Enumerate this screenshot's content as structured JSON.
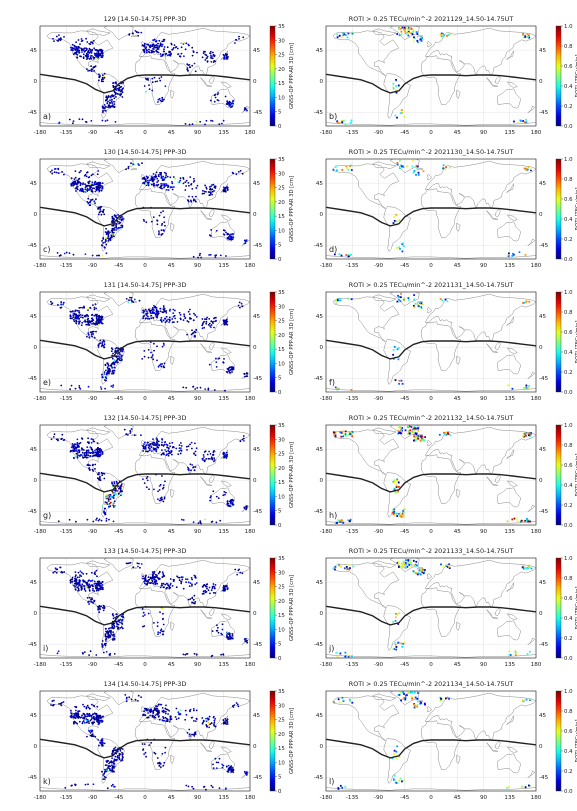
{
  "chart_data": [
    {
      "type": "scatter",
      "panel_label": "a)",
      "title": "129 [14.50-14.75] PPP-3D",
      "kind": "ppp",
      "colorbar_label": "GNSS-OP PPP-AR 3D [cm]"
    },
    {
      "type": "scatter",
      "panel_label": "b)",
      "title": "ROTI > 0.25 TECu/min^-2  2021129_14.50-14.75UT",
      "kind": "roti",
      "colorbar_label": "ROTI [TECu/min]"
    },
    {
      "type": "scatter",
      "panel_label": "c)",
      "title": "130 [14.50-14.75] PPP-3D",
      "kind": "ppp",
      "colorbar_label": "GNSS-OP PPP-AR 3D [cm]"
    },
    {
      "type": "scatter",
      "panel_label": "d)",
      "title": "ROTI > 0.25 TECu/min^-2  2021130_14.50-14.75UT",
      "kind": "roti",
      "colorbar_label": "ROTI [TECu/min]"
    },
    {
      "type": "scatter",
      "panel_label": "e)",
      "title": "131 [14.50-14.75] PPP-3D",
      "kind": "ppp",
      "colorbar_label": "GNSS-OP PPP-AR 3D [cm]"
    },
    {
      "type": "scatter",
      "panel_label": "f)",
      "title": "ROTI > 0.25 TECu/min^-2  2021131_14.50-14.75UT",
      "kind": "roti",
      "colorbar_label": "ROTI [TECu/min]"
    },
    {
      "type": "scatter",
      "panel_label": "g)",
      "title": "132 [14.50-14.75] PPP-3D",
      "kind": "ppp",
      "colorbar_label": "GNSS-OP PPP-AR 3D [cm]"
    },
    {
      "type": "scatter",
      "panel_label": "h)",
      "title": "ROTI > 0.25 TECu/min^-2  2021132_14.50-14.75UT",
      "kind": "roti",
      "colorbar_label": "ROTI [TECu/min]"
    },
    {
      "type": "scatter",
      "panel_label": "i)",
      "title": "133 [14.50-14.75] PPP-3D",
      "kind": "ppp",
      "colorbar_label": "GNSS-OP PPP-AR 3D [cm]"
    },
    {
      "type": "scatter",
      "panel_label": "j)",
      "title": "ROTI > 0.25 TECu/min^-2  2021133_14.50-14.75UT",
      "kind": "roti",
      "colorbar_label": "ROTI [TECu/min]"
    },
    {
      "type": "scatter",
      "panel_label": "k)",
      "title": "134 [14.50-14.75] PPP-3D",
      "kind": "ppp",
      "colorbar_label": "GNSS-OP PPP-AR 3D [cm]"
    },
    {
      "type": "scatter",
      "panel_label": "l)",
      "title": "ROTI > 0.25 TECu/min^-2  2021134_14.50-14.75UT",
      "kind": "roti",
      "colorbar_label": "ROTI [TECu/min]"
    }
  ],
  "axes": {
    "xlim": [
      -180,
      180
    ],
    "ylim": [
      -65,
      80
    ],
    "x_ticks": [
      "-180",
      "-135",
      "-90",
      "-45",
      "0",
      "45",
      "90",
      "135",
      "180"
    ],
    "y_ticks": [
      "45",
      "0",
      "-45"
    ],
    "grid": true
  },
  "colorbars": {
    "ppp": {
      "ticks": [
        "0",
        "5",
        "10",
        "15",
        "20",
        "25",
        "30",
        "35"
      ],
      "range": [
        0,
        35
      ],
      "colormap": "jet"
    },
    "roti": {
      "ticks": [
        "0.0",
        "0.2",
        "0.4",
        "0.6",
        "0.8",
        "1.0"
      ],
      "range": [
        0,
        1
      ],
      "colormap": "jet"
    }
  },
  "magnetic_equator": {
    "lon": [
      -180,
      -150,
      -120,
      -100,
      -85,
      -70,
      -55,
      -45,
      -30,
      -15,
      0,
      20,
      40,
      60,
      80,
      100,
      120,
      140,
      160,
      180
    ],
    "lat": [
      10,
      6,
      2,
      -4,
      -12,
      -17,
      -14,
      -4,
      4,
      8,
      9,
      9,
      9,
      8,
      9,
      9,
      8,
      6,
      4,
      2
    ]
  },
  "colors": {
    "point_low": "#1414d2",
    "equator_line": "#222222",
    "coast": "#888888"
  }
}
